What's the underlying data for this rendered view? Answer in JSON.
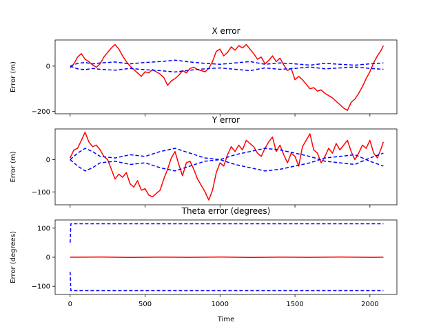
{
  "figure": {
    "xlabel": "Time"
  },
  "chart_data": [
    {
      "type": "line",
      "title": "X error",
      "xlabel": "",
      "ylabel": "Error (m)",
      "xlim": [
        -100,
        2180
      ],
      "ylim": [
        -210,
        115
      ],
      "xticks": [
        0,
        500,
        1000,
        1500,
        2000
      ],
      "yticks": [
        -200,
        0
      ],
      "yticklabels": [
        "−200",
        "0"
      ],
      "show_xticklabels": false,
      "series": [
        {
          "role": "error",
          "color": "#ff0000",
          "style": "solid",
          "x": [
            0,
            25,
            50,
            75,
            100,
            125,
            150,
            175,
            200,
            225,
            250,
            275,
            300,
            325,
            350,
            375,
            400,
            425,
            450,
            475,
            500,
            525,
            550,
            575,
            600,
            625,
            650,
            675,
            700,
            725,
            750,
            775,
            800,
            825,
            850,
            875,
            900,
            925,
            950,
            975,
            1000,
            1025,
            1050,
            1075,
            1100,
            1125,
            1150,
            1175,
            1200,
            1225,
            1250,
            1275,
            1300,
            1325,
            1350,
            1375,
            1400,
            1425,
            1450,
            1475,
            1500,
            1525,
            1550,
            1575,
            1600,
            1625,
            1650,
            1675,
            1700,
            1725,
            1750,
            1775,
            1800,
            1825,
            1850,
            1875,
            1900,
            1925,
            1950,
            1975,
            2000,
            2025,
            2050,
            2075,
            2090
          ],
          "y": [
            -8,
            10,
            40,
            55,
            30,
            20,
            5,
            -5,
            10,
            40,
            60,
            80,
            95,
            75,
            45,
            20,
            0,
            -15,
            -30,
            -45,
            -25,
            -30,
            -15,
            -25,
            -35,
            -50,
            -85,
            -65,
            -55,
            -40,
            -20,
            -30,
            -10,
            -5,
            -15,
            -20,
            -25,
            -10,
            20,
            65,
            75,
            45,
            60,
            85,
            70,
            90,
            80,
            95,
            75,
            55,
            30,
            40,
            10,
            25,
            45,
            20,
            35,
            5,
            -20,
            -10,
            -60,
            -45,
            -60,
            -80,
            -100,
            -95,
            -110,
            -105,
            -120,
            -130,
            -140,
            -155,
            -170,
            -185,
            -195,
            -160,
            -145,
            -120,
            -90,
            -55,
            -25,
            15,
            45,
            70,
            90
          ]
        },
        {
          "role": "bound",
          "color": "#0000ff",
          "style": "dashed",
          "x": [
            0,
            50,
            100,
            150,
            200,
            300,
            400,
            500,
            600,
            700,
            800,
            900,
            1000,
            1100,
            1200,
            1300,
            1400,
            1500,
            1600,
            1700,
            1800,
            1900,
            2000,
            2090
          ],
          "y": [
            0,
            12,
            16,
            10,
            14,
            18,
            10,
            16,
            20,
            26,
            18,
            12,
            8,
            14,
            20,
            8,
            14,
            10,
            4,
            12,
            8,
            4,
            10,
            14
          ]
        },
        {
          "role": "bound",
          "color": "#0000ff",
          "style": "dashed",
          "x": [
            0,
            50,
            100,
            150,
            200,
            300,
            400,
            500,
            600,
            700,
            800,
            900,
            1000,
            1100,
            1200,
            1300,
            1400,
            1500,
            1600,
            1700,
            1800,
            1900,
            2000,
            2090
          ],
          "y": [
            0,
            -12,
            -16,
            -10,
            -14,
            -18,
            -10,
            -16,
            -20,
            -26,
            -18,
            -12,
            -8,
            -14,
            -20,
            -8,
            -14,
            -10,
            -4,
            -12,
            -8,
            -4,
            -10,
            -14
          ]
        }
      ]
    },
    {
      "type": "line",
      "title": "Y error",
      "xlabel": "",
      "ylabel": "Error (m)",
      "xlim": [
        -100,
        2180
      ],
      "ylim": [
        -140,
        95
      ],
      "xticks": [
        0,
        500,
        1000,
        1500,
        2000
      ],
      "yticks": [
        -100,
        0
      ],
      "yticklabels": [
        "−100",
        "0"
      ],
      "show_xticklabels": false,
      "series": [
        {
          "role": "error",
          "color": "#ff0000",
          "style": "solid",
          "x": [
            0,
            25,
            50,
            75,
            100,
            125,
            150,
            175,
            200,
            225,
            250,
            275,
            300,
            325,
            350,
            375,
            400,
            425,
            450,
            475,
            500,
            525,
            550,
            575,
            600,
            625,
            650,
            675,
            700,
            725,
            750,
            775,
            800,
            825,
            850,
            875,
            900,
            925,
            950,
            975,
            1000,
            1025,
            1050,
            1075,
            1100,
            1125,
            1150,
            1175,
            1200,
            1225,
            1250,
            1275,
            1300,
            1325,
            1350,
            1375,
            1400,
            1425,
            1450,
            1475,
            1500,
            1525,
            1550,
            1575,
            1600,
            1625,
            1650,
            1675,
            1700,
            1725,
            1750,
            1775,
            1800,
            1825,
            1850,
            1875,
            1900,
            1925,
            1950,
            1975,
            2000,
            2025,
            2050,
            2075,
            2090
          ],
          "y": [
            5,
            30,
            35,
            60,
            85,
            55,
            40,
            45,
            30,
            10,
            0,
            -30,
            -60,
            -45,
            -55,
            -40,
            -75,
            -85,
            -65,
            -95,
            -90,
            -110,
            -115,
            -105,
            -95,
            -60,
            -30,
            5,
            25,
            -15,
            -50,
            -10,
            -5,
            -30,
            -60,
            -80,
            -100,
            -125,
            -95,
            -40,
            -10,
            -20,
            15,
            40,
            25,
            45,
            30,
            60,
            50,
            40,
            20,
            10,
            35,
            55,
            70,
            25,
            45,
            15,
            -10,
            20,
            10,
            -20,
            40,
            60,
            80,
            30,
            20,
            -10,
            10,
            35,
            20,
            50,
            30,
            45,
            60,
            25,
            0,
            20,
            45,
            35,
            60,
            20,
            5,
            35,
            55
          ]
        },
        {
          "role": "bound",
          "color": "#0000ff",
          "style": "dashed",
          "x": [
            0,
            50,
            100,
            150,
            200,
            300,
            400,
            500,
            600,
            700,
            800,
            900,
            1000,
            1100,
            1200,
            1300,
            1400,
            1500,
            1600,
            1700,
            1800,
            1900,
            2000,
            2090
          ],
          "y": [
            0,
            20,
            35,
            25,
            10,
            5,
            15,
            10,
            25,
            35,
            20,
            5,
            0,
            15,
            25,
            35,
            30,
            20,
            10,
            -5,
            -10,
            -15,
            5,
            20
          ]
        },
        {
          "role": "bound",
          "color": "#0000ff",
          "style": "dashed",
          "x": [
            0,
            50,
            100,
            150,
            200,
            300,
            400,
            500,
            600,
            700,
            800,
            900,
            1000,
            1100,
            1200,
            1300,
            1400,
            1500,
            1600,
            1700,
            1800,
            1900,
            2000,
            2090
          ],
          "y": [
            0,
            -20,
            -35,
            -25,
            -10,
            -5,
            -15,
            -10,
            -25,
            -35,
            -20,
            -5,
            0,
            -15,
            -25,
            -35,
            -30,
            -20,
            -10,
            5,
            10,
            15,
            -5,
            -20
          ]
        }
      ]
    },
    {
      "type": "line",
      "title": "Theta error (degrees)",
      "xlabel": "Time",
      "ylabel": "Error (degrees)",
      "xlim": [
        -100,
        2180
      ],
      "ylim": [
        -128,
        128
      ],
      "xticks": [
        0,
        500,
        1000,
        1500,
        2000
      ],
      "xticklabels": [
        "0",
        "500",
        "1000",
        "1500",
        "2000"
      ],
      "yticks": [
        -100,
        0,
        100
      ],
      "yticklabels": [
        "−100",
        "0",
        "100"
      ],
      "show_xticklabels": true,
      "series": [
        {
          "role": "error",
          "color": "#ff0000",
          "style": "solid",
          "x": [
            0,
            200,
            400,
            600,
            800,
            1000,
            1200,
            1400,
            1600,
            1800,
            2000,
            2090
          ],
          "y": [
            0,
            0.5,
            -0.5,
            0.3,
            -0.3,
            0.4,
            -0.4,
            0.2,
            -0.2,
            0.4,
            -0.3,
            0
          ]
        },
        {
          "role": "bound",
          "color": "#0000ff",
          "style": "dashed",
          "x": [
            0,
            5,
            20,
            2090
          ],
          "y": [
            50,
            115,
            115,
            115
          ]
        },
        {
          "role": "bound",
          "color": "#0000ff",
          "style": "dashed",
          "x": [
            0,
            5,
            20,
            2090
          ],
          "y": [
            -50,
            -115,
            -115,
            -115
          ]
        }
      ]
    }
  ]
}
